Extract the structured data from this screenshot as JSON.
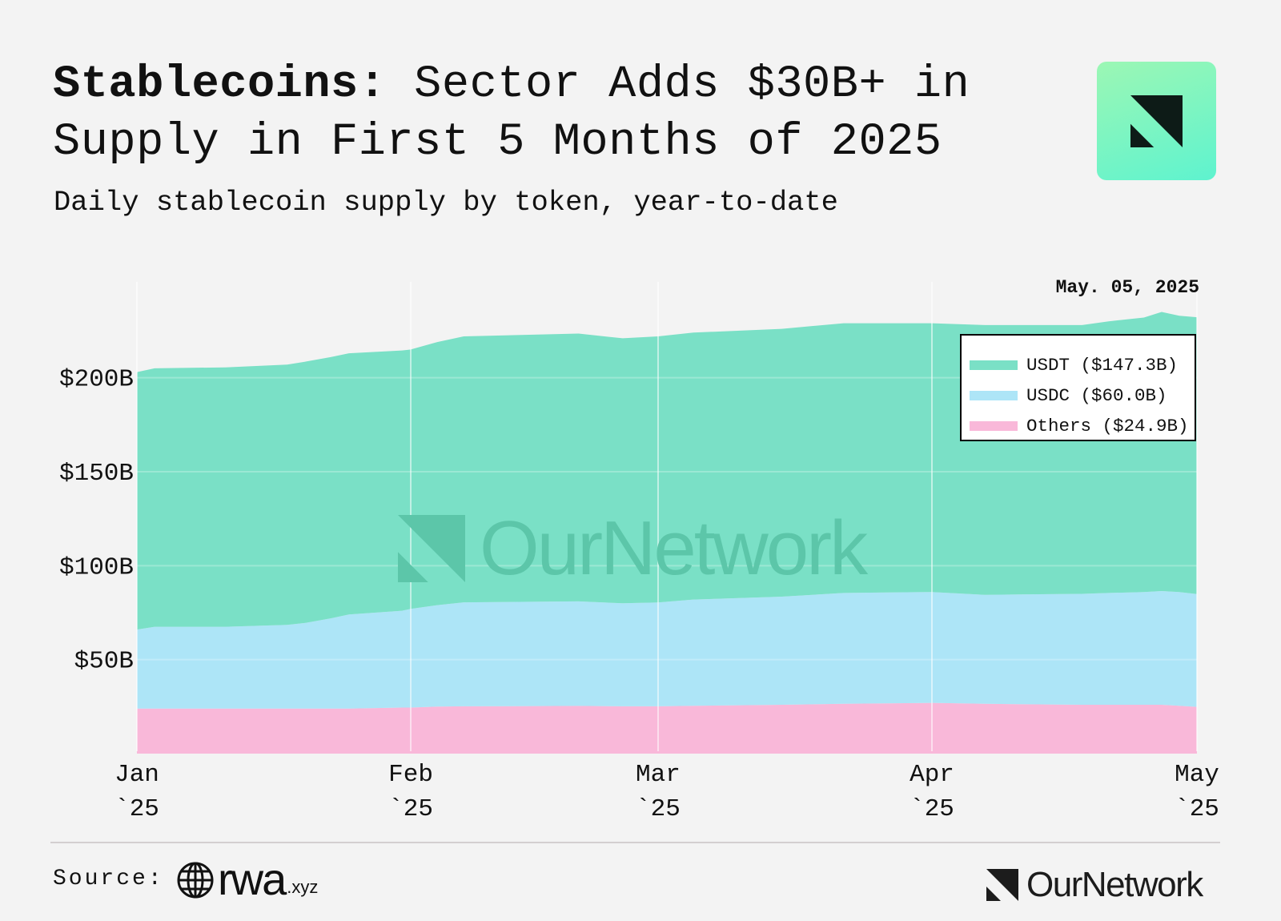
{
  "header": {
    "title_bold": "Stablecoins:",
    "title_rest_line1": " Sector Adds $30B+ in",
    "title_line2": "Supply in First 5 Months of 2025",
    "subtitle": "Daily stablecoin supply by token, year-to-date"
  },
  "date_label": "May. 05, 2025",
  "footer": {
    "source_label": "Source:",
    "source_brand": "rwa",
    "source_brand_suffix": ".xyz",
    "publisher": "OurNetwork"
  },
  "watermark": "OurNetwork",
  "chart_data": {
    "type": "area",
    "stacked": true,
    "title": "Stablecoins: Sector Adds $30B+ in Supply in First 5 Months of 2025",
    "subtitle": "Daily stablecoin supply by token, year-to-date",
    "xlabel": "",
    "ylabel": "",
    "x_unit": "days since Jan 1, 2025",
    "x": [
      0,
      2,
      10,
      17,
      19,
      22,
      24,
      30,
      31,
      34,
      37,
      50,
      55,
      59,
      63,
      73,
      80,
      90,
      96,
      107,
      110,
      114,
      116,
      118,
      120
    ],
    "xlim": [
      0,
      120
    ],
    "x_ticks": [
      {
        "value": 0,
        "line1": "Jan",
        "line2": "`25"
      },
      {
        "value": 31,
        "line1": "Feb",
        "line2": "`25"
      },
      {
        "value": 59,
        "line1": "Mar",
        "line2": "`25"
      },
      {
        "value": 90,
        "line1": "Apr",
        "line2": "`25"
      },
      {
        "value": 120,
        "line1": "May",
        "line2": "`25"
      }
    ],
    "ylim": [
      0,
      248
    ],
    "y_ticks": [
      {
        "value": 50,
        "label": "$50B"
      },
      {
        "value": 100,
        "label": "$100B"
      },
      {
        "value": 150,
        "label": "$150B"
      },
      {
        "value": 200,
        "label": "$200B"
      }
    ],
    "grid": true,
    "legend_position": "top-right",
    "series": [
      {
        "name": "Others",
        "legend": "Others ($24.9B)",
        "color": "#f9b8d9",
        "values": [
          24,
          24,
          24,
          24,
          24,
          24,
          24,
          24.5,
          24.5,
          25,
          25.2,
          25.4,
          25.2,
          25.2,
          25.5,
          26,
          26.5,
          27,
          26.5,
          26,
          26,
          26,
          26,
          25.5,
          24.9
        ]
      },
      {
        "name": "USDC",
        "legend": "USDC ($60.0B)",
        "color": "#ade5f7",
        "values": [
          42,
          43.5,
          43.5,
          44.5,
          45.5,
          48,
          50,
          51.5,
          52.5,
          54,
          55.3,
          55.6,
          54.8,
          55.2,
          56.5,
          57.5,
          59,
          59,
          58,
          59,
          59.5,
          60,
          60.5,
          60.5,
          60.0
        ]
      },
      {
        "name": "USDT",
        "legend": "USDT ($147.3B)",
        "color": "#7ae0c6",
        "values": [
          137,
          137.5,
          138,
          138.5,
          139,
          139,
          139,
          138.5,
          138,
          140,
          141.5,
          142.5,
          141,
          141.6,
          142,
          142.5,
          143.5,
          143,
          143.5,
          143,
          144.5,
          146,
          148.5,
          147,
          147.3
        ]
      }
    ]
  }
}
